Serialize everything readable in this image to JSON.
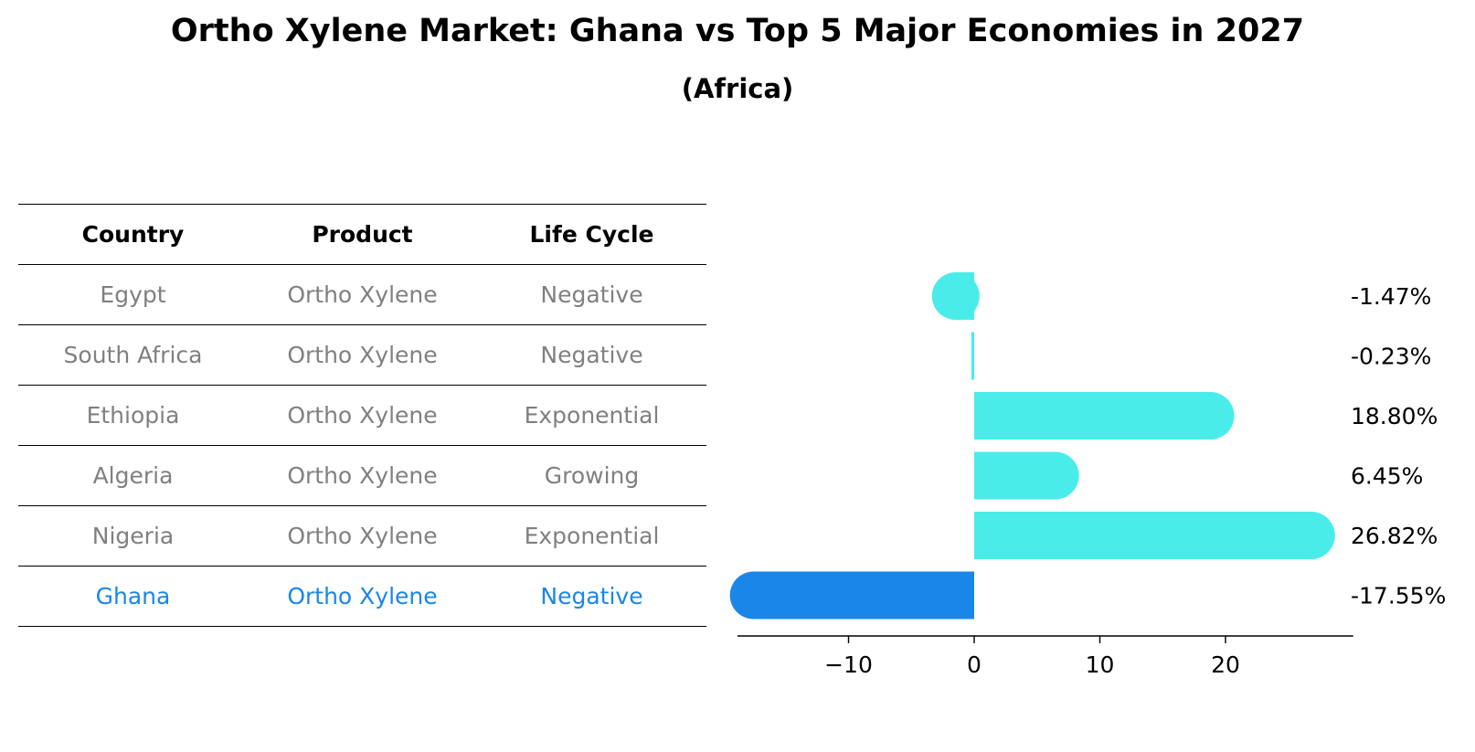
{
  "title": "Ortho Xylene Market: Ghana vs Top 5 Major Economies in 2027",
  "subtitle": "(Africa)",
  "table": {
    "headers": [
      "Country",
      "Product",
      "Life Cycle"
    ],
    "rows": [
      [
        "Egypt",
        "Ortho Xylene",
        "Negative"
      ],
      [
        "South Africa",
        "Ortho Xylene",
        "Negative"
      ],
      [
        "Ethiopia",
        "Ortho Xylene",
        "Exponential"
      ],
      [
        "Algeria",
        "Ortho Xylene",
        "Growing"
      ],
      [
        "Nigeria",
        "Ortho Xylene",
        "Exponential"
      ],
      [
        "Ghana",
        "Ortho Xylene",
        "Negative"
      ]
    ]
  },
  "colors": {
    "bar": "#4aece9",
    "highlight": "#1a86e8",
    "muted": "#808080"
  },
  "chart_data": {
    "type": "bar",
    "orientation": "horizontal",
    "categories": [
      "Egypt",
      "South Africa",
      "Ethiopia",
      "Algeria",
      "Nigeria",
      "Ghana"
    ],
    "values": [
      -1.47,
      -0.23,
      18.8,
      6.45,
      26.82,
      -17.55
    ],
    "value_labels": [
      "-1.47%",
      "-0.23%",
      "18.80%",
      "6.45%",
      "26.82%",
      "-17.55%"
    ],
    "highlight": "Ghana",
    "xticks": [
      -10,
      0,
      10,
      20
    ],
    "xtick_labels": [
      "−10",
      "0",
      "10",
      "20"
    ],
    "xlim": [
      -20,
      29
    ],
    "xlabel": "",
    "ylabel": ""
  }
}
